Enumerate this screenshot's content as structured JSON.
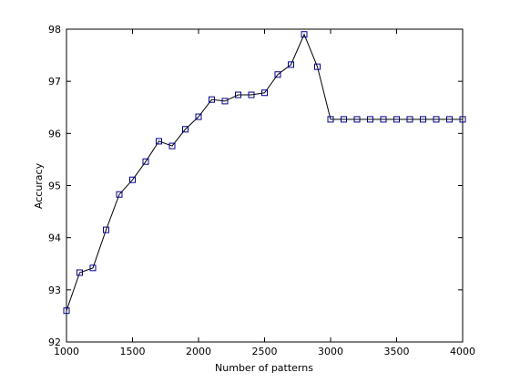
{
  "chart_data": {
    "type": "line",
    "xlabel": "Number of patterns",
    "ylabel": "Accuracy",
    "x": [
      1000,
      1100,
      1200,
      1300,
      1400,
      1500,
      1600,
      1700,
      1800,
      1900,
      2000,
      2100,
      2200,
      2300,
      2400,
      2500,
      2600,
      2700,
      2800,
      2900,
      3000,
      3100,
      3200,
      3300,
      3400,
      3500,
      3600,
      3700,
      3800,
      3900,
      4000
    ],
    "values": [
      92.6,
      93.33,
      93.42,
      94.15,
      94.83,
      95.11,
      95.46,
      95.85,
      95.76,
      96.08,
      96.32,
      96.65,
      96.62,
      96.74,
      96.74,
      96.78,
      97.13,
      97.32,
      97.9,
      97.28,
      96.27,
      96.27,
      96.27,
      96.27,
      96.27,
      96.27,
      96.27,
      96.27,
      96.27,
      96.27,
      96.27
    ],
    "color": "#000000",
    "marker_color": "#00008b",
    "xlim": [
      1000,
      4000
    ],
    "xticks": [
      1000,
      1500,
      2000,
      2500,
      3000,
      3500,
      4000
    ],
    "ylim": [
      92,
      98
    ],
    "yticks": [
      92,
      93,
      94,
      95,
      96,
      97,
      98
    ]
  }
}
